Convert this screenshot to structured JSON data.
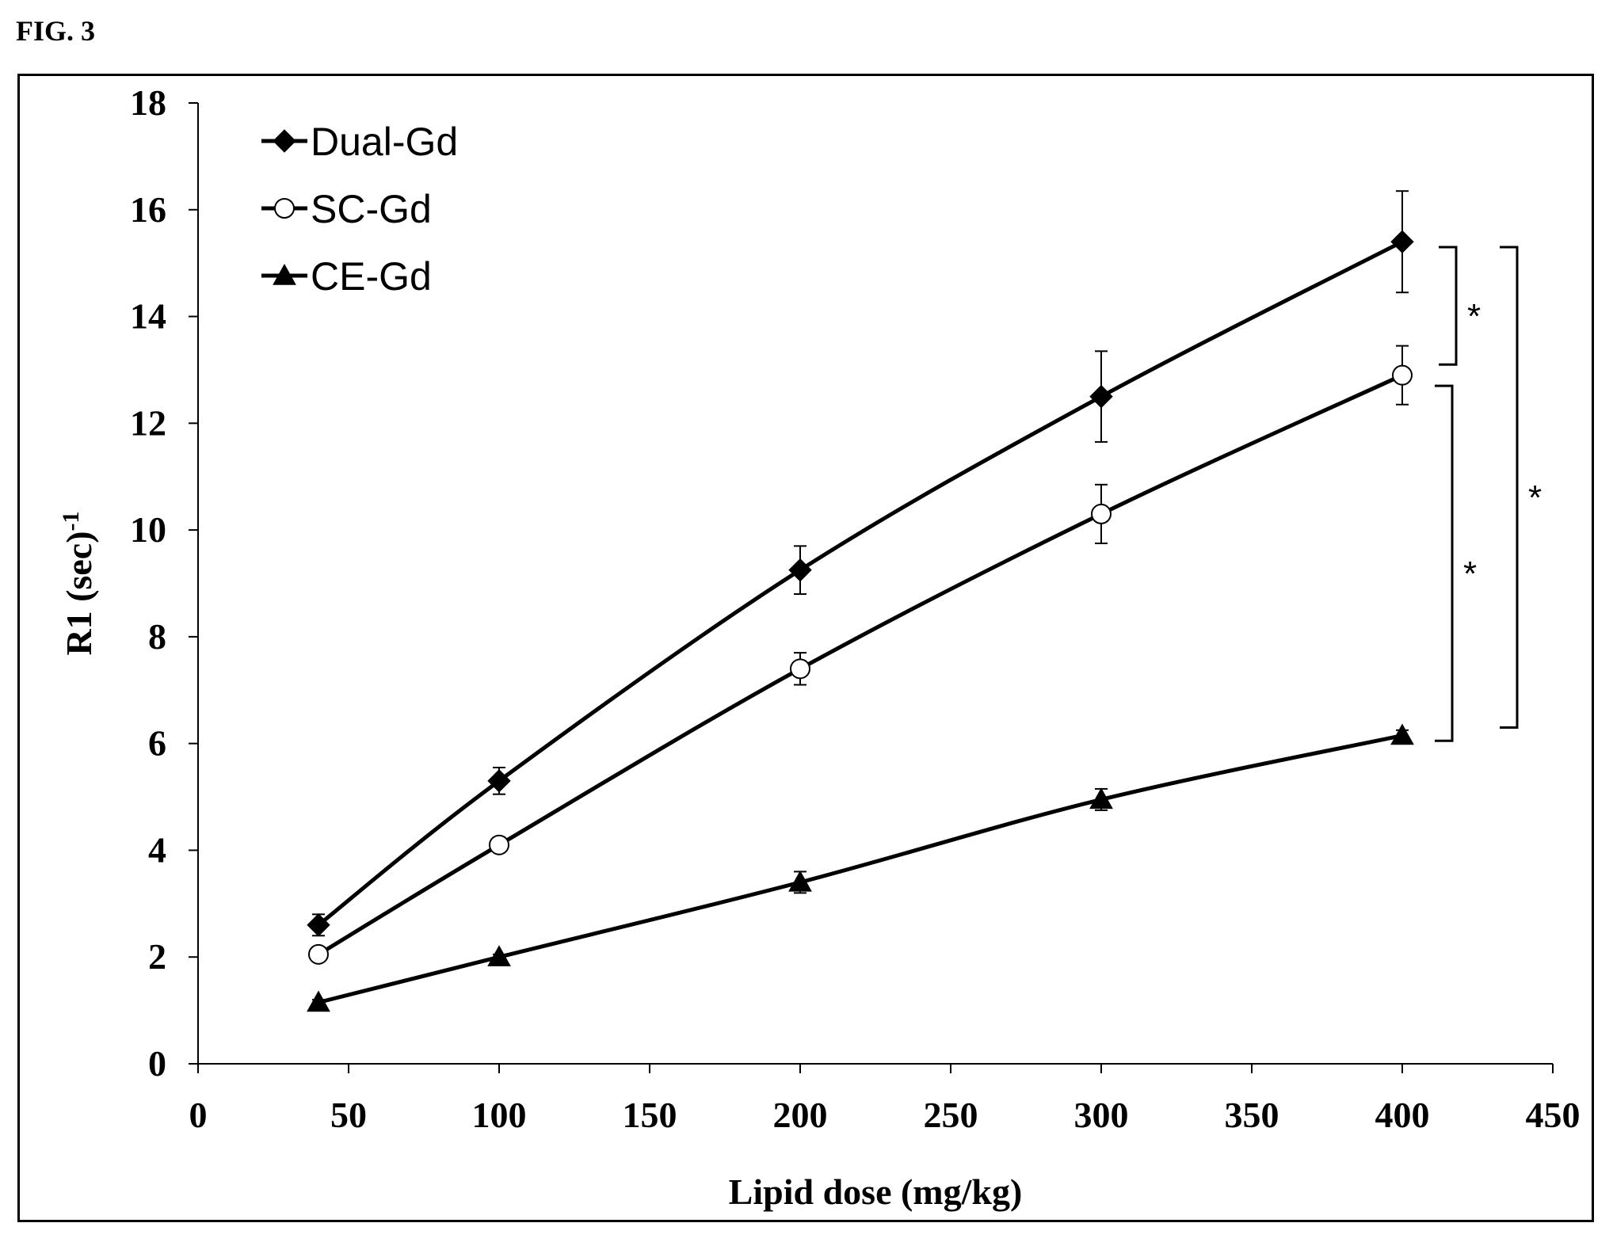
{
  "figure_label": "FIG. 3",
  "chart_data": {
    "type": "line",
    "xlabel": "Lipid dose (mg/kg)",
    "ylabel_main": "R1 (sec)",
    "ylabel_sup": "-1",
    "xlim": [
      0,
      450
    ],
    "ylim": [
      0,
      18
    ],
    "xticks": [
      0,
      50,
      100,
      150,
      200,
      250,
      300,
      350,
      400,
      450
    ],
    "yticks": [
      0,
      2,
      4,
      6,
      8,
      10,
      12,
      14,
      16,
      18
    ],
    "grid": false,
    "legend_position": "top-left",
    "x": [
      40,
      100,
      200,
      300,
      400
    ],
    "series": [
      {
        "name": "Dual-Gd",
        "marker": "diamond-filled",
        "values": [
          2.6,
          5.3,
          9.25,
          12.5,
          15.4
        ],
        "errors": [
          0.2,
          0.25,
          0.45,
          0.85,
          0.95
        ]
      },
      {
        "name": "SC-Gd",
        "marker": "circle-open",
        "values": [
          2.05,
          4.1,
          7.4,
          10.3,
          12.9
        ],
        "errors": [
          0.1,
          0.12,
          0.3,
          0.55,
          0.55
        ]
      },
      {
        "name": "CE-Gd",
        "marker": "triangle-filled",
        "values": [
          1.15,
          2.0,
          3.4,
          4.95,
          6.15
        ],
        "errors": [
          0.05,
          0.05,
          0.2,
          0.2,
          0.1
        ]
      }
    ],
    "annotations": [
      {
        "text": "*",
        "between": [
          "Dual-Gd",
          "SC-Gd"
        ]
      },
      {
        "text": "*",
        "between": [
          "SC-Gd",
          "CE-Gd"
        ]
      },
      {
        "text": "*",
        "between": [
          "Dual-Gd",
          "CE-Gd"
        ]
      }
    ]
  }
}
